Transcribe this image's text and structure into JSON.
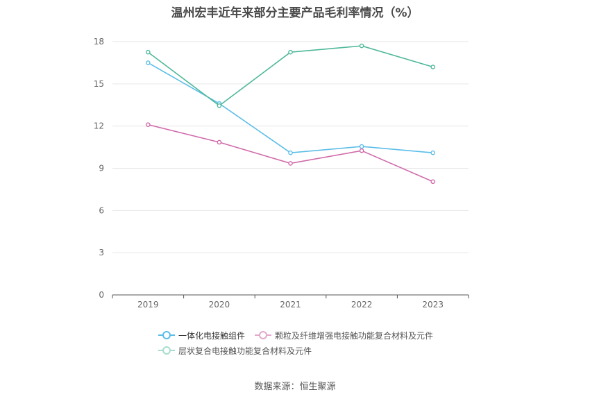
{
  "title": "温州宏丰近年来部分主要产品毛利率情况（%）",
  "source": "数据来源：恒生聚源",
  "chart_data": {
    "type": "line",
    "title": "温州宏丰近年来部分主要产品毛利率情况（%）",
    "x": [
      "2019",
      "2020",
      "2021",
      "2022",
      "2023"
    ],
    "yticks": [
      "0",
      "3",
      "6",
      "9",
      "12",
      "15",
      "18"
    ],
    "ylim": [
      0,
      18
    ],
    "grid": true,
    "legend_position": "bottom",
    "series": [
      {
        "name": "一体化电接触组件",
        "color": "#5bbde8",
        "values": [
          16.5,
          13.6,
          10.1,
          10.55,
          10.1
        ]
      },
      {
        "name": "颗粒及纤维增强电接触功能复合材料及元件",
        "color": "#d06aaa",
        "values": [
          12.1,
          10.85,
          9.35,
          10.25,
          8.05
        ]
      },
      {
        "name": "层状复合电接触功能复合材料及元件",
        "color": "#4fb89a",
        "values": [
          17.25,
          13.45,
          17.25,
          17.7,
          16.2
        ]
      }
    ]
  }
}
